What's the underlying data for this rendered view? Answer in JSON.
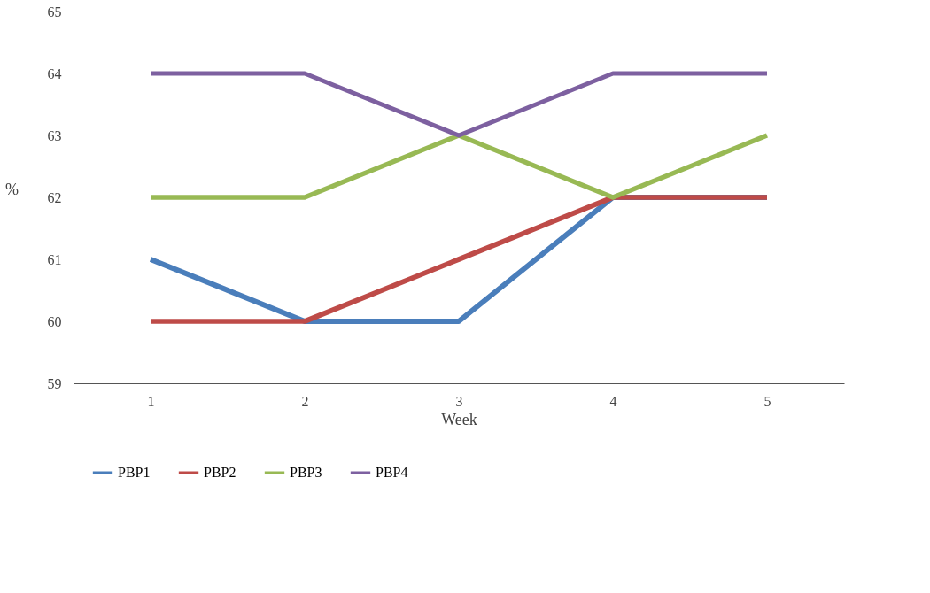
{
  "chart_data": {
    "type": "line",
    "xlabel": "Week",
    "ylabel": "%",
    "categories": [
      "1",
      "2",
      "3",
      "4",
      "5"
    ],
    "series": [
      {
        "name": "PBP1",
        "color": "#4a7ebb",
        "values": [
          61,
          60,
          60,
          62,
          62
        ]
      },
      {
        "name": "PBP2",
        "color": "#be4b48",
        "values": [
          60,
          60,
          61,
          62,
          62
        ]
      },
      {
        "name": "PBP3",
        "color": "#98b954",
        "values": [
          62,
          62,
          63,
          62,
          63
        ]
      },
      {
        "name": "PBP4",
        "color": "#7d60a0",
        "values": [
          64,
          64,
          63,
          64,
          64
        ]
      }
    ],
    "ylim": [
      59,
      65
    ],
    "yticks": [
      59,
      60,
      61,
      62,
      63,
      64,
      65
    ],
    "grid": false,
    "legend": "bottom",
    "marker": "none",
    "line_style": "solid"
  }
}
